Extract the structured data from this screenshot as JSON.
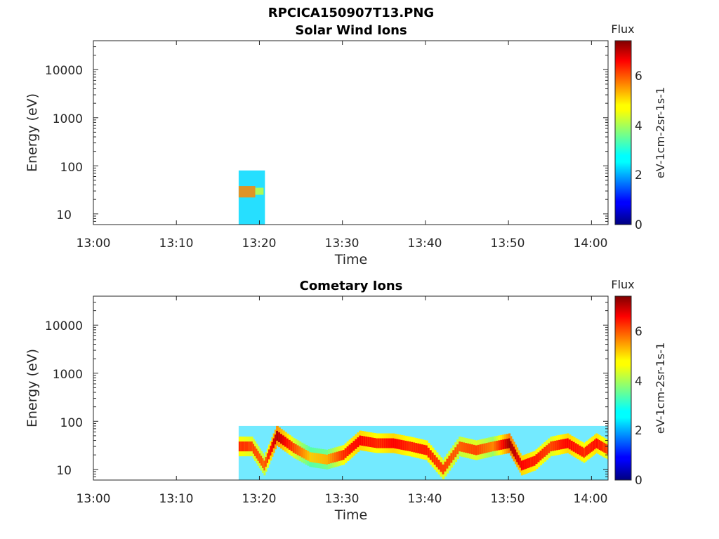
{
  "figure_title": "RPCICA150907T13.PNG",
  "chart_data": [
    {
      "type": "heatmap",
      "title": "Solar Wind Ions",
      "xlabel": "Time",
      "ylabel": "Energy (eV)",
      "x_ticks": [
        "13:00",
        "13:10",
        "13:20",
        "13:30",
        "13:40",
        "13:50",
        "14:00"
      ],
      "y_ticks": [
        "10",
        "100",
        "1000",
        "10000"
      ],
      "y_scale": "log",
      "xlim": [
        "13:00",
        "14:02"
      ],
      "ylim": [
        6,
        40000
      ],
      "colorbar": {
        "title": "Flux",
        "label": "eV-1cm-2sr-1s-1",
        "ticks": [
          "0",
          "2",
          "4",
          "6"
        ],
        "range": [
          0,
          7.4
        ],
        "colormap": "jet"
      },
      "blocks": [
        {
          "t_start": "13:17:30",
          "t_end": "13:20:40",
          "e_min": 6,
          "e_max": 80,
          "level": 2.5
        },
        {
          "t_start": "13:17:30",
          "t_end": "13:19:30",
          "e_min": 22,
          "e_max": 38,
          "level": 5.5
        },
        {
          "t_start": "13:19:30",
          "t_end": "13:20:30",
          "e_min": 25,
          "e_max": 35,
          "level": 4.2
        }
      ]
    },
    {
      "type": "heatmap",
      "title": "Cometary Ions",
      "xlabel": "Time",
      "ylabel": "Energy (eV)",
      "x_ticks": [
        "13:00",
        "13:10",
        "13:20",
        "13:30",
        "13:40",
        "13:50",
        "14:00"
      ],
      "y_ticks": [
        "10",
        "100",
        "1000",
        "10000"
      ],
      "y_scale": "log",
      "xlim": [
        "13:00",
        "14:02"
      ],
      "ylim": [
        6,
        40000
      ],
      "colorbar": {
        "title": "Flux",
        "label": "eV-1cm-2sr-1s-1",
        "ticks": [
          "0",
          "2",
          "4",
          "6"
        ],
        "range": [
          0,
          7.4
        ],
        "colormap": "jet"
      },
      "background": {
        "t_start": "13:17:30",
        "t_end": "14:02",
        "e_min": 6,
        "e_max": 80,
        "level": 2.5
      },
      "peak_energy_track": [
        {
          "t": "13:17:30",
          "e": 30,
          "level": 6.2
        },
        {
          "t": "13:19:00",
          "e": 30,
          "level": 6.0
        },
        {
          "t": "13:20:30",
          "e": 12,
          "level": 5.8
        },
        {
          "t": "13:22:00",
          "e": 50,
          "level": 7.0
        },
        {
          "t": "13:24:00",
          "e": 28,
          "level": 6.0
        },
        {
          "t": "13:26:00",
          "e": 18,
          "level": 5.0
        },
        {
          "t": "13:28:00",
          "e": 16,
          "level": 5.2
        },
        {
          "t": "13:30:00",
          "e": 20,
          "level": 6.2
        },
        {
          "t": "13:32:00",
          "e": 40,
          "level": 6.5
        },
        {
          "t": "13:34:00",
          "e": 35,
          "level": 6.2
        },
        {
          "t": "13:36:00",
          "e": 35,
          "level": 6.5
        },
        {
          "t": "13:38:00",
          "e": 30,
          "level": 6.2
        },
        {
          "t": "13:40:00",
          "e": 25,
          "level": 6.3
        },
        {
          "t": "13:42:00",
          "e": 10,
          "level": 6.0
        },
        {
          "t": "13:44:00",
          "e": 30,
          "level": 5.8
        },
        {
          "t": "13:46:00",
          "e": 25,
          "level": 6.0
        },
        {
          "t": "13:48:00",
          "e": 30,
          "level": 5.5
        },
        {
          "t": "13:50:00",
          "e": 35,
          "level": 7.2
        },
        {
          "t": "13:51:30",
          "e": 12,
          "level": 6.5
        },
        {
          "t": "13:53:00",
          "e": 15,
          "level": 6.3
        },
        {
          "t": "13:55:00",
          "e": 30,
          "level": 6.0
        },
        {
          "t": "13:57:00",
          "e": 35,
          "level": 6.5
        },
        {
          "t": "13:59:00",
          "e": 22,
          "level": 6.2
        },
        {
          "t": "14:00:30",
          "e": 35,
          "level": 6.4
        },
        {
          "t": "14:02:00",
          "e": 25,
          "level": 6.0
        }
      ]
    }
  ]
}
